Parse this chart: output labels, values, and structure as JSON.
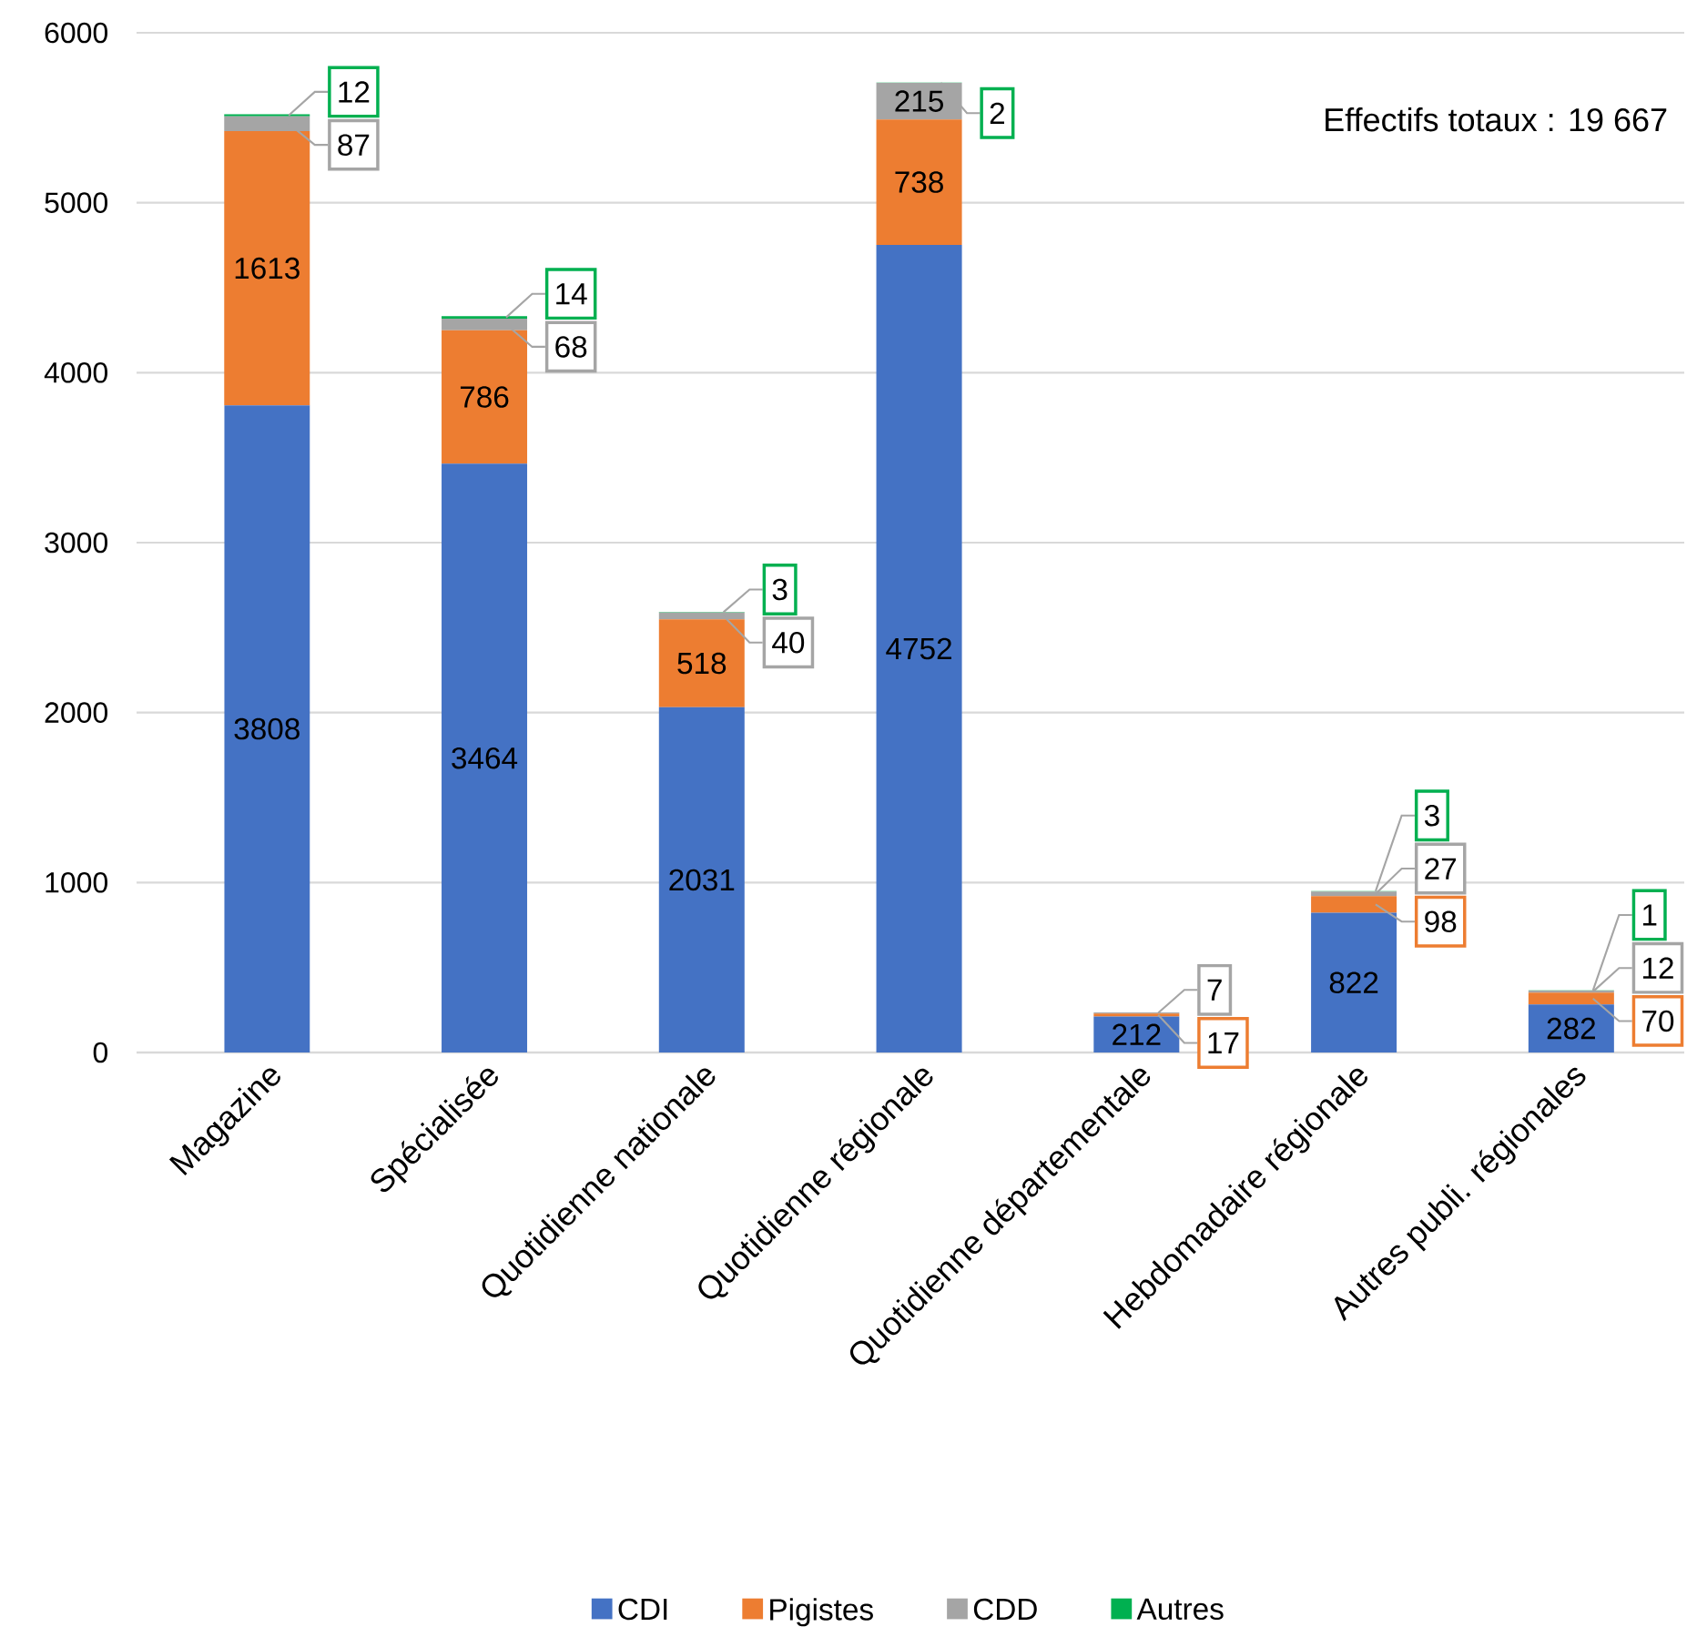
{
  "chart_data": {
    "type": "bar",
    "stacked": true,
    "categories": [
      "Magazine",
      "Spécialisée",
      "Quotidienne nationale",
      "Quotidienne régionale",
      "Quotidienne départementale",
      "Hebdomadaire régionale",
      "Autres publi. régionales"
    ],
    "series": [
      {
        "name": "CDI",
        "color": "#4472c4",
        "values": [
          3808,
          3464,
          2031,
          4752,
          212,
          822,
          282
        ]
      },
      {
        "name": "Pigistes",
        "color": "#ed7d31",
        "values": [
          1613,
          786,
          518,
          738,
          17,
          98,
          70
        ]
      },
      {
        "name": "CDD",
        "color": "#a5a5a5",
        "values": [
          87,
          68,
          40,
          215,
          7,
          27,
          12
        ]
      },
      {
        "name": "Autres",
        "color": "#00b050",
        "values": [
          12,
          14,
          3,
          2,
          null,
          3,
          1
        ]
      }
    ],
    "ylim": [
      0,
      6000
    ],
    "yticks": [
      0,
      1000,
      2000,
      3000,
      4000,
      5000,
      6000
    ],
    "grid": "y",
    "legend": "bottom",
    "data_labels": true,
    "annotations": [
      "Effectifs totaux : 19 667"
    ]
  }
}
